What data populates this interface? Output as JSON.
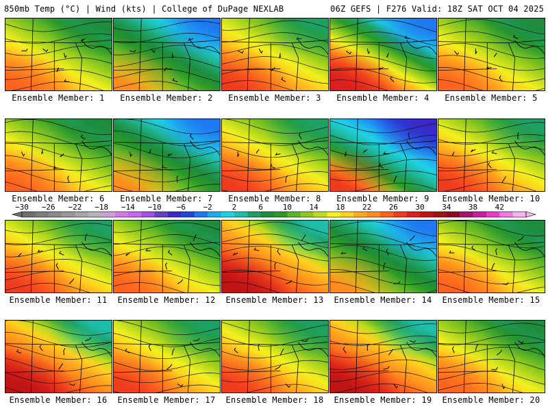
{
  "header": {
    "left": "850mb Temp (°C) | Wind (kts) | College of DuPage NEXLAB",
    "right": "06Z GEFS | F276 Valid: 18Z SAT OCT 04 2025"
  },
  "panels": [
    {
      "label": "Ensemble Member: 1",
      "scheme": "green"
    },
    {
      "label": "Ensemble Member: 2",
      "scheme": "cool"
    },
    {
      "label": "Ensemble Member: 3",
      "scheme": "warm"
    },
    {
      "label": "Ensemble Member: 4",
      "scheme": "split"
    },
    {
      "label": "Ensemble Member: 5",
      "scheme": "green"
    },
    {
      "label": "Ensemble Member: 6",
      "scheme": "green"
    },
    {
      "label": "Ensemble Member: 7",
      "scheme": "cool"
    },
    {
      "label": "Ensemble Member: 8",
      "scheme": "warm"
    },
    {
      "label": "Ensemble Member: 9",
      "scheme": "cold"
    },
    {
      "label": "Ensemble Member: 10",
      "scheme": "warm"
    },
    {
      "label": "Ensemble Member: 11",
      "scheme": "warm"
    },
    {
      "label": "Ensemble Member: 12",
      "scheme": "green"
    },
    {
      "label": "Ensemble Member: 13",
      "scheme": "hot"
    },
    {
      "label": "Ensemble Member: 14",
      "scheme": "cool"
    },
    {
      "label": "Ensemble Member: 15",
      "scheme": "green"
    },
    {
      "label": "Ensemble Member: 16",
      "scheme": "hot"
    },
    {
      "label": "Ensemble Member: 17",
      "scheme": "warm"
    },
    {
      "label": "Ensemble Member: 18",
      "scheme": "warm"
    },
    {
      "label": "Ensemble Member: 19",
      "scheme": "hot"
    },
    {
      "label": "Ensemble Member: 20",
      "scheme": "green"
    }
  ],
  "colorbar": {
    "min": -30,
    "max": 46,
    "step": 2,
    "tick_labels": [
      "-30",
      "-26",
      "-22",
      "-18",
      "-14",
      "-10",
      "-6",
      "-2",
      "2",
      "6",
      "10",
      "14",
      "18",
      "22",
      "26",
      "30",
      "34",
      "38",
      "42"
    ],
    "colors": [
      "#6e6e6e",
      "#7c7c7c",
      "#8a8a8a",
      "#989898",
      "#a6a6a6",
      "#b4b4b4",
      "#c8a0d8",
      "#d27ae6",
      "#c864f0",
      "#a050e6",
      "#6440c8",
      "#3c28c8",
      "#1e46dc",
      "#1e78f0",
      "#1eaaf0",
      "#1ed2e6",
      "#1ebeaa",
      "#1ea064",
      "#1e8c3c",
      "#2a9a28",
      "#5ab428",
      "#8cc81e",
      "#bedc1e",
      "#f0f01e",
      "#ffd21e",
      "#ffaa1e",
      "#ff8c1e",
      "#ff641e",
      "#f03c1e",
      "#dc1e1e",
      "#be1414",
      "#a01414",
      "#8c0a1e",
      "#a0146e",
      "#c81ea0",
      "#e63cc8",
      "#f078e6",
      "#f5b4f0"
    ]
  }
}
